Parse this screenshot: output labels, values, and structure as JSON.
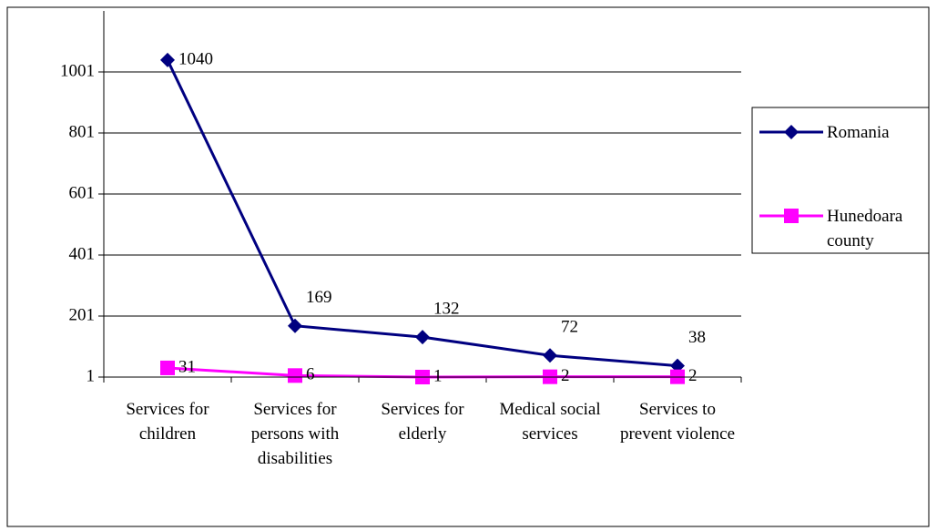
{
  "chart_data": {
    "type": "line",
    "categories": [
      "Services for children",
      "Services for persons with disabilities",
      "Services for elderly",
      "Medical social services",
      "Services to prevent violence"
    ],
    "series": [
      {
        "name": "Romania",
        "color": "#000080",
        "marker": "diamond",
        "values": [
          1040,
          169,
          132,
          72,
          38
        ]
      },
      {
        "name": "Hunedoara county",
        "color": "#ff00ff",
        "marker": "square",
        "values": [
          31,
          6,
          1,
          2,
          2
        ]
      }
    ],
    "ylim": [
      1,
      1201
    ],
    "yticks": [
      1,
      201,
      401,
      601,
      801,
      1001
    ],
    "grid": true,
    "legend": "right"
  }
}
